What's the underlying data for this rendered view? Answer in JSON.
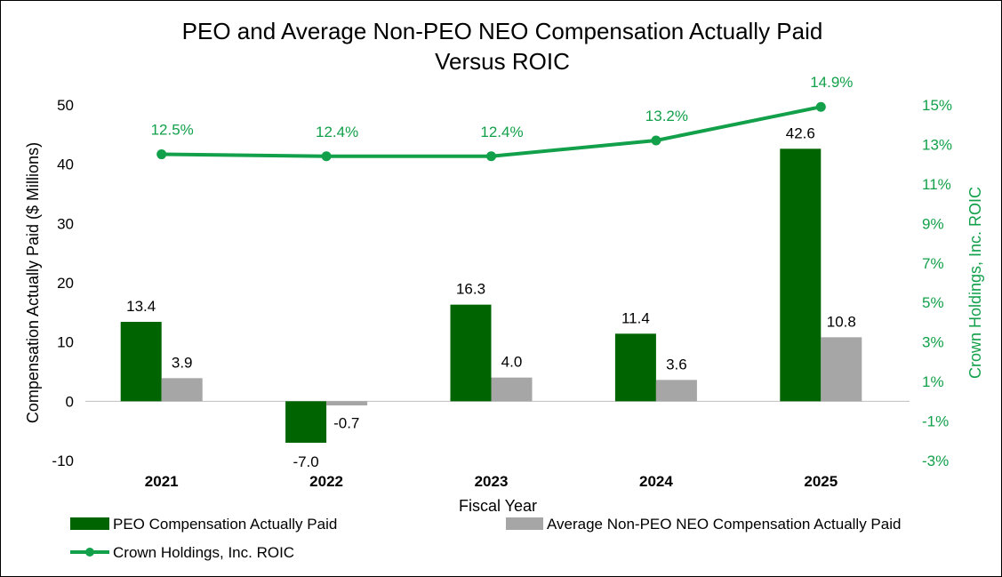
{
  "chart_data": {
    "type": "bar",
    "title": "PEO and Average Non-PEO NEO Compensation Actually Paid",
    "subtitle": "Versus ROIC",
    "xlabel": "Fiscal Year",
    "ylabel": "Compensation Actually Paid ($ Millions)",
    "y2label": "Crown Holdings, Inc. ROIC",
    "categories": [
      "2021",
      "2022",
      "2023",
      "2024",
      "2025"
    ],
    "ylim": [
      -10,
      50
    ],
    "yticks": [
      "50",
      "40",
      "30",
      "20",
      "10",
      "0",
      "-10"
    ],
    "y2lim": [
      -3,
      15
    ],
    "y2ticks": [
      "15%",
      "13%",
      "11%",
      "9%",
      "7%",
      "5%",
      "3%",
      "1%",
      "-1%",
      "-3%"
    ],
    "series": [
      {
        "name": "PEO Compensation Actually Paid",
        "type": "bar",
        "axis": "left",
        "color": "#006400",
        "values": [
          13.4,
          -7.0,
          16.3,
          11.4,
          42.6
        ],
        "labels": [
          "13.4",
          "-7.0",
          "16.3",
          "11.4",
          "42.6"
        ]
      },
      {
        "name": "Average Non-PEO NEO Compensation Actually Paid",
        "type": "bar",
        "axis": "left",
        "color": "#a6a6a6",
        "values": [
          3.9,
          -0.7,
          4.0,
          3.6,
          10.8
        ],
        "labels": [
          "3.9",
          "-0.7",
          "4.0",
          "3.6",
          "10.8"
        ]
      },
      {
        "name": "Crown Holdings, Inc. ROIC",
        "type": "line",
        "axis": "right",
        "color": "#12a04a",
        "values": [
          12.5,
          12.4,
          12.4,
          13.2,
          14.9
        ],
        "labels": [
          "12.5%",
          "12.4%",
          "12.4%",
          "13.2%",
          "14.9%"
        ]
      }
    ],
    "legend": "bottom"
  }
}
